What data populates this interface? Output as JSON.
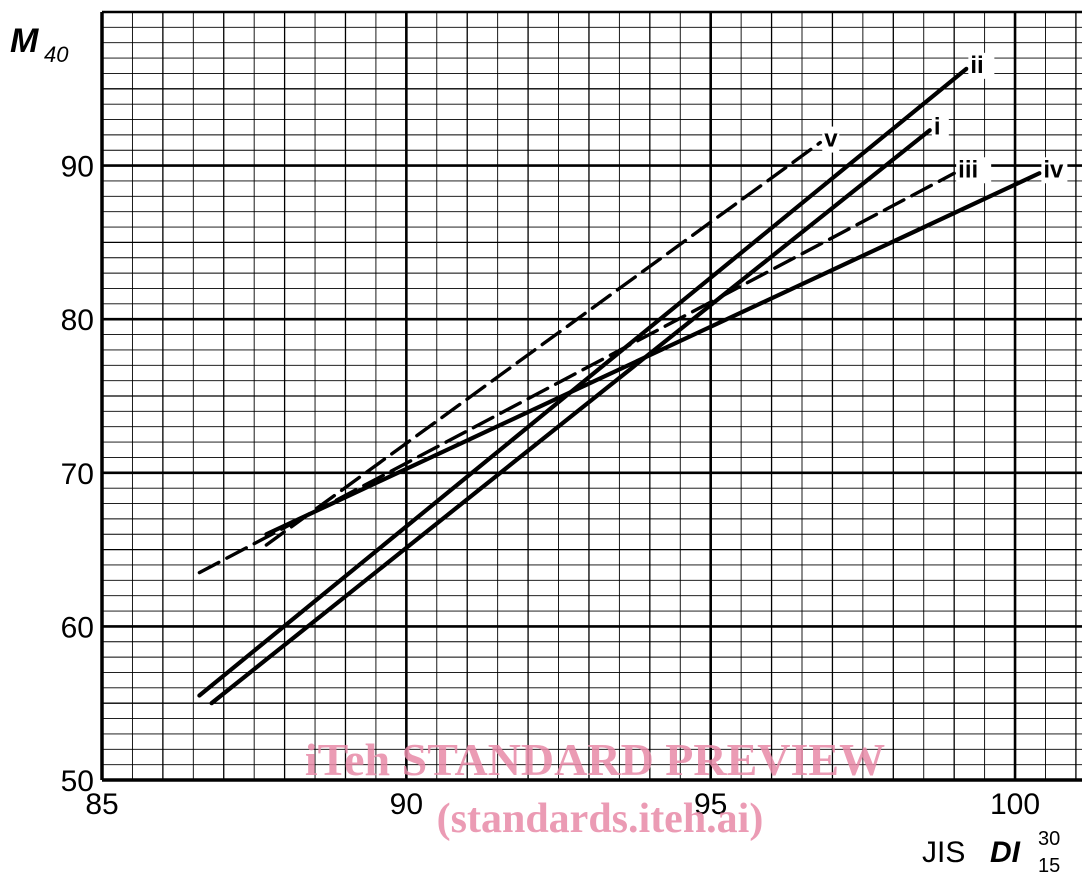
{
  "chart_data": {
    "type": "line",
    "ylabel": "M",
    "ylabel_sub": "40",
    "xlabel": "JIS",
    "xlabel_symbol": "DI",
    "xlabel_sup": "30",
    "xlabel_sub": "15",
    "xlim": [
      85,
      101.1
    ],
    "ylim": [
      50,
      100
    ],
    "x_ticks": [
      "85",
      "90",
      "95",
      "100"
    ],
    "y_ticks": [
      "50",
      "60",
      "70",
      "80",
      "90"
    ],
    "grid": true,
    "series": [
      {
        "name": "i",
        "style": "solid",
        "points": [
          [
            86.8,
            55.0
          ],
          [
            98.6,
            92.3
          ]
        ]
      },
      {
        "name": "ii",
        "style": "solid",
        "points": [
          [
            86.6,
            55.5
          ],
          [
            99.2,
            96.3
          ]
        ]
      },
      {
        "name": "iii",
        "style": "dashed",
        "points": [
          [
            86.6,
            63.5
          ],
          [
            99.0,
            89.5
          ]
        ]
      },
      {
        "name": "iv",
        "style": "solid",
        "points": [
          [
            87.7,
            66.0
          ],
          [
            100.4,
            89.5
          ]
        ]
      },
      {
        "name": "v",
        "style": "dashed",
        "points": [
          [
            87.7,
            65.3
          ],
          [
            96.8,
            91.5
          ]
        ]
      }
    ]
  },
  "watermark": {
    "line1": "iTeh STANDARD PREVIEW",
    "line2": "(standards.iteh.ai)"
  }
}
